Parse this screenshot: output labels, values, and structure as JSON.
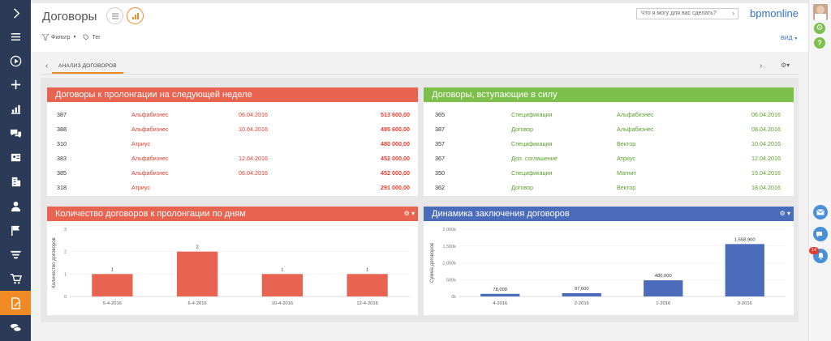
{
  "header": {
    "title": "Договоры",
    "filter_label": "Фильтр",
    "tag_label": "Тег",
    "search_placeholder": "Что я могу для вас сделать?",
    "brand": "bpmonline",
    "view_label": "ВИД"
  },
  "tabs": {
    "active": "АНАЛИЗ ДОГОВОРОВ"
  },
  "panel_renewals": {
    "title": "Договоры к пролонгации на следующей неделе",
    "rows": [
      {
        "num": "387",
        "account": "Альфабизнес",
        "date": "06.04.2016",
        "amount": "513 600,00"
      },
      {
        "num": "388",
        "account": "Альфабизнес",
        "date": "10.04.2016",
        "amount": "495 600,00"
      },
      {
        "num": "310",
        "account": "Атриус",
        "date": "",
        "amount": "480 000,00"
      },
      {
        "num": "383",
        "account": "Альфабизнес",
        "date": "12.04.2016",
        "amount": "452 000,00"
      },
      {
        "num": "385",
        "account": "Альфабизнес",
        "date": "06.04.2016",
        "amount": "452 000,00"
      },
      {
        "num": "318",
        "account": "Атриус",
        "date": "",
        "amount": "291 000,00"
      }
    ]
  },
  "panel_effective": {
    "title": "Договоры, вступающие в силу",
    "rows": [
      {
        "num": "365",
        "type": "Спецификация",
        "account": "Альфабизнес",
        "date": "06.04.2016"
      },
      {
        "num": "387",
        "type": "Договор",
        "account": "Альфабизнес",
        "date": "08.04.2016"
      },
      {
        "num": "357",
        "type": "Спецификация",
        "account": "Вектор",
        "date": "10.04.2016"
      },
      {
        "num": "367",
        "type": "Доп. соглашение",
        "account": "Атриус",
        "date": "12.04.2016"
      },
      {
        "num": "350",
        "type": "Спецификация",
        "account": "Магнит",
        "date": "15.04.2016"
      },
      {
        "num": "362",
        "type": "Договор",
        "account": "Вектор",
        "date": "18.04.2016"
      }
    ]
  },
  "chart_titles": {
    "by_days": "Количество договоров к пролонгации по дням",
    "dynamics": "Динамика заключения договоров"
  },
  "chart_data": [
    {
      "type": "bar",
      "title": "Количество договоров к пролонгации по дням",
      "ylabel": "Количество договоров",
      "categories": [
        "5-4-2016",
        "6-4-2016",
        "10-4-2016",
        "12-4-2016"
      ],
      "values": [
        1,
        2,
        1,
        1
      ],
      "data_labels": [
        "1",
        "2",
        "1",
        "1"
      ],
      "yticks": [
        "0",
        "1",
        "2",
        "3"
      ],
      "ylim": [
        0,
        3
      ],
      "color": "#e96450"
    },
    {
      "type": "bar",
      "title": "Динамика заключения договоров",
      "ylabel": "Сумма договоров",
      "categories": [
        "4-2016",
        "2-2016",
        "1-2016",
        "3-2016"
      ],
      "values": [
        78000,
        97600,
        480000,
        1558900
      ],
      "data_labels": [
        "78,000",
        "97,600",
        "480,000",
        "1,558,900"
      ],
      "yticks": [
        "0k",
        "500k",
        "1,000k",
        "1,500k",
        "2,000k"
      ],
      "ylim": [
        0,
        2000000
      ],
      "color": "#4b6cbb"
    }
  ],
  "notifications": {
    "badge": "14"
  },
  "colors": {
    "accent": "#f08a24",
    "nav": "#2b3a56",
    "red": "#e96450",
    "green": "#7cc04b",
    "blue": "#4b6cbb"
  },
  "nav_icons": [
    "chevron-right-icon",
    "menu-icon",
    "play-icon",
    "plus-icon",
    "bar-chart-icon",
    "chat-icon",
    "contacts-icon",
    "building-icon",
    "person-icon",
    "flag-icon",
    "funnel-icon",
    "cart-icon",
    "document-edit-icon",
    "coins-icon"
  ]
}
